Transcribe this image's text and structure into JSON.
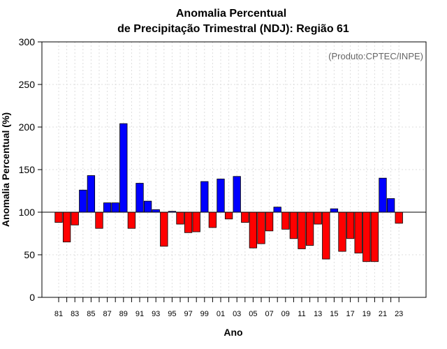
{
  "chart_data": {
    "type": "bar",
    "title": "Anomalia Percentual",
    "subtitle": "de Precipitação Trimestral (NDJ): Região 61",
    "xlabel": "Ano",
    "ylabel": "Anomalia Percentual (%)",
    "credit": "(Produto:CPTEC/INPE)",
    "ylim": [
      0,
      300
    ],
    "yticks": [
      0,
      50,
      100,
      150,
      200,
      250,
      300
    ],
    "baseline": 100,
    "grid": true,
    "colors": {
      "above": "#0000ff",
      "below": "#ff0000",
      "edge": "#000000",
      "grid": "#dddddd"
    },
    "categories": [
      "81",
      "82",
      "83",
      "84",
      "85",
      "86",
      "87",
      "88",
      "89",
      "90",
      "91",
      "92",
      "93",
      "94",
      "95",
      "96",
      "97",
      "98",
      "99",
      "00",
      "01",
      "02",
      "03",
      "04",
      "05",
      "06",
      "07",
      "08",
      "09",
      "10",
      "11",
      "12",
      "13",
      "14",
      "15",
      "16",
      "17",
      "18",
      "19",
      "20",
      "21",
      "22",
      "23"
    ],
    "xtick_labels": [
      "81",
      "83",
      "85",
      "87",
      "89",
      "91",
      "93",
      "95",
      "97",
      "99",
      "01",
      "03",
      "05",
      "07",
      "09",
      "11",
      "13",
      "15",
      "17",
      "19",
      "21",
      "23"
    ],
    "values": [
      88,
      65,
      85,
      126,
      143,
      81,
      111,
      111,
      204,
      81,
      134,
      113,
      103,
      60,
      101,
      86,
      76,
      77,
      136,
      82,
      139,
      92,
      142,
      88,
      58,
      63,
      78,
      106,
      80,
      69,
      57,
      61,
      86,
      45,
      104,
      54,
      69,
      52,
      42,
      42,
      140,
      116,
      87
    ]
  }
}
